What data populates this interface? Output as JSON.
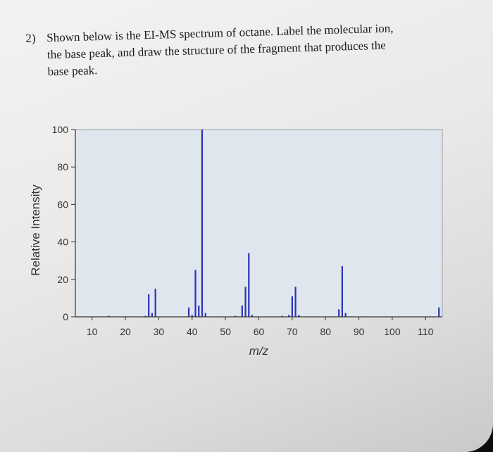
{
  "question": {
    "number": "2)",
    "lines": [
      "Shown below is the EI-MS spectrum of octane. Label the molecular ion,",
      "the base peak, and draw the structure of the fragment that produces the",
      "base peak."
    ]
  },
  "colors": {
    "bar": "#2a32b8",
    "plot_bg": "#dfe6ee",
    "axis": "#333333",
    "text": "#333333"
  },
  "chart_data": {
    "type": "bar",
    "title": "",
    "xlabel": "m/z",
    "ylabel": "Relative Intensity",
    "xlim": [
      5,
      115
    ],
    "ylim": [
      0,
      100
    ],
    "x_ticks": [
      10,
      20,
      30,
      40,
      50,
      60,
      70,
      80,
      90,
      100,
      110
    ],
    "y_ticks": [
      0,
      20,
      40,
      60,
      80,
      100
    ],
    "grid": false,
    "values": [
      {
        "x": 15,
        "y": 0.5
      },
      {
        "x": 26,
        "y": 0.5
      },
      {
        "x": 27,
        "y": 12
      },
      {
        "x": 28,
        "y": 2
      },
      {
        "x": 29,
        "y": 15
      },
      {
        "x": 39,
        "y": 5
      },
      {
        "x": 40,
        "y": 1
      },
      {
        "x": 41,
        "y": 25
      },
      {
        "x": 42,
        "y": 6
      },
      {
        "x": 43,
        "y": 100
      },
      {
        "x": 44,
        "y": 2
      },
      {
        "x": 53,
        "y": 0.5
      },
      {
        "x": 55,
        "y": 6
      },
      {
        "x": 56,
        "y": 16
      },
      {
        "x": 57,
        "y": 34
      },
      {
        "x": 58,
        "y": 1
      },
      {
        "x": 67,
        "y": 0.5
      },
      {
        "x": 69,
        "y": 1
      },
      {
        "x": 70,
        "y": 11
      },
      {
        "x": 71,
        "y": 16
      },
      {
        "x": 72,
        "y": 1
      },
      {
        "x": 84,
        "y": 4
      },
      {
        "x": 85,
        "y": 27
      },
      {
        "x": 86,
        "y": 2
      },
      {
        "x": 114,
        "y": 5
      }
    ]
  }
}
